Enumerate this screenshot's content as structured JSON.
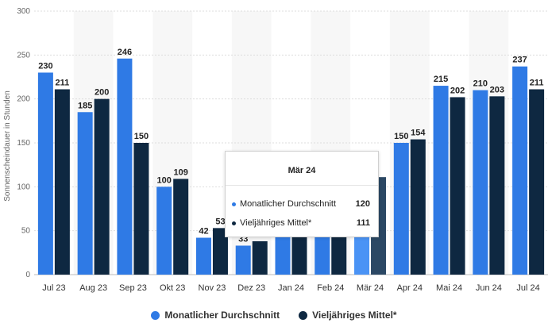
{
  "chart_data": {
    "type": "bar",
    "categories": [
      "Jul 23",
      "Aug 23",
      "Sep 23",
      "Okt 23",
      "Nov 23",
      "Dez 23",
      "Jan 24",
      "Feb 24",
      "Mär 24",
      "Apr 24",
      "Mai 24",
      "Jun 24",
      "Jul 24"
    ],
    "series": [
      {
        "name": "Monatlicher Durchschnitt",
        "color": "#2f7ae5",
        "values": [
          230,
          185,
          246,
          100,
          42,
          33,
          50,
          50,
          120,
          150,
          215,
          210,
          237
        ],
        "labels": [
          "230",
          "185",
          "246",
          "100",
          "42",
          "33",
          "",
          "",
          "",
          "150",
          "215",
          "210",
          "237"
        ]
      },
      {
        "name": "Vieljähriges Mittel*",
        "color": "#0e2841",
        "values": [
          211,
          200,
          150,
          109,
          53,
          38,
          44,
          50,
          111,
          154,
          202,
          203,
          211
        ],
        "labels": [
          "211",
          "200",
          "150",
          "109",
          "53",
          "38",
          "",
          "",
          "",
          "154",
          "202",
          "203",
          "211"
        ]
      }
    ],
    "ylabel": "Sonnenscheindauer in Stunden",
    "ylim": [
      0,
      300
    ],
    "yticks": [
      0,
      50,
      100,
      150,
      200,
      250,
      300
    ],
    "grid": true,
    "legend_position": "bottom-center",
    "highlight_index": 8,
    "highlight_colors": [
      "#4a93f5",
      "#2b4864"
    ]
  },
  "tooltip": {
    "title": "Mär 24",
    "rows": [
      {
        "name": "Monatlicher Durchschnitt",
        "value": "120",
        "color": "#2f7ae5"
      },
      {
        "name": "Vieljähriges Mittel*",
        "value": "111",
        "color": "#0e2841"
      }
    ]
  }
}
